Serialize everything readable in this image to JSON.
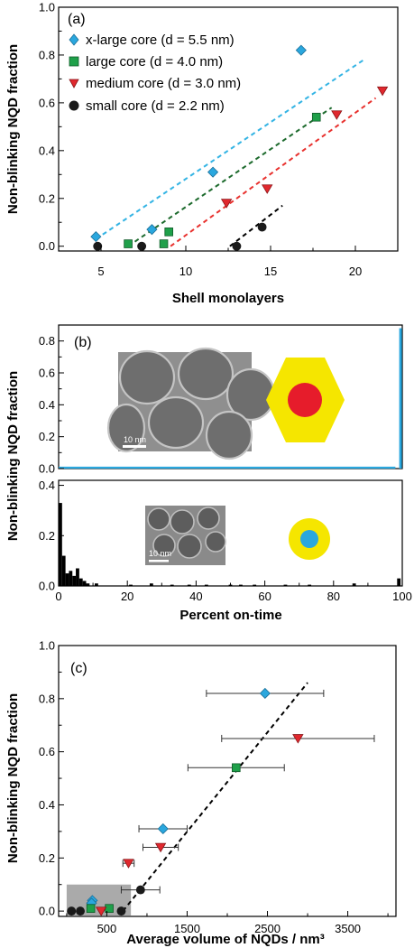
{
  "chart_data": [
    {
      "type": "scatter",
      "panel_label": "(a)",
      "xlabel": "Shell monolayers",
      "ylabel": "Non-blinking NQD fraction",
      "xlim": [
        2.5,
        22.5
      ],
      "ylim": [
        -0.02,
        1.0
      ],
      "xticks": [
        5,
        10,
        15,
        20
      ],
      "yticks": [
        0.0,
        0.2,
        0.4,
        0.6,
        0.8,
        1.0
      ],
      "legend_position": "top-left",
      "series": [
        {
          "name": "x-large core (d = 5.5 nm)",
          "marker": "diamond",
          "color": "#2aa7de",
          "line_color": "#34b4e4",
          "x": [
            4.7,
            8.0,
            11.6,
            16.8
          ],
          "y": [
            0.04,
            0.07,
            0.31,
            0.82
          ],
          "fit": {
            "x": [
              4.7,
              20.5
            ],
            "y": [
              0.03,
              0.78
            ]
          }
        },
        {
          "name": "large core (d = 4.0 nm)",
          "marker": "square",
          "color": "#1fa04a",
          "line_color": "#1e6b2e",
          "x": [
            6.6,
            8.7,
            9.0,
            17.7
          ],
          "y": [
            0.01,
            0.01,
            0.06,
            0.54
          ],
          "fit": {
            "x": [
              6.6,
              18.6
            ],
            "y": [
              0.0,
              0.58
            ]
          }
        },
        {
          "name": "medium core (d = 3.0 nm)",
          "marker": "triangle-down",
          "color": "#e0282e",
          "line_color": "#e8312e",
          "x": [
            12.4,
            14.8,
            18.9,
            21.6
          ],
          "y": [
            0.18,
            0.24,
            0.55,
            0.65
          ],
          "fit": {
            "x": [
              9.1,
              21.2
            ],
            "y": [
              0.0,
              0.62
            ]
          }
        },
        {
          "name": "small core (d = 2.2 nm)",
          "marker": "circle",
          "color": "#1a1a1a",
          "line_color": "#000000",
          "x": [
            4.8,
            7.4,
            13.0,
            14.5
          ],
          "y": [
            0.0,
            0.0,
            0.0,
            0.08
          ],
          "fit": {
            "x": [
              12.6,
              15.7
            ],
            "y": [
              0.0,
              0.17
            ]
          }
        }
      ]
    },
    {
      "type": "bar",
      "panel_label": "(b)",
      "ylabel": "Non-blinking NQD fraction",
      "xlim": [
        0,
        100
      ],
      "ylim": [
        0,
        0.9
      ],
      "yticks": [
        0.0,
        0.2,
        0.4,
        0.6,
        0.8
      ],
      "color": "#2aa7de",
      "bins": [
        {
          "x": 0,
          "y": 0.0
        },
        {
          "x": 20,
          "y": 0.0
        },
        {
          "x": 40,
          "y": 0.0
        },
        {
          "x": 60,
          "y": 0.0
        },
        {
          "x": 80,
          "y": 0.0
        },
        {
          "x": 96,
          "y": 0.005
        },
        {
          "x": 99.5,
          "y": 0.88
        }
      ],
      "inset_scale_bar": "10 nm"
    },
    {
      "type": "bar",
      "xlabel": "Percent on-time",
      "ylabel": "Non-blinking NQD fraction",
      "xlim": [
        0,
        100
      ],
      "ylim": [
        0,
        0.42
      ],
      "xticks": [
        0,
        20,
        40,
        60,
        80,
        100
      ],
      "yticks": [
        0.0,
        0.2,
        0.4
      ],
      "color": "#000000",
      "bins": [
        {
          "x": 0.5,
          "y": 0.33
        },
        {
          "x": 1.5,
          "y": 0.12
        },
        {
          "x": 2.5,
          "y": 0.05
        },
        {
          "x": 3.5,
          "y": 0.06
        },
        {
          "x": 4.5,
          "y": 0.04
        },
        {
          "x": 5.5,
          "y": 0.07
        },
        {
          "x": 6.5,
          "y": 0.03
        },
        {
          "x": 7.5,
          "y": 0.02
        },
        {
          "x": 8.5,
          "y": 0.01
        },
        {
          "x": 11,
          "y": 0.01
        },
        {
          "x": 21,
          "y": 0.005
        },
        {
          "x": 27,
          "y": 0.01
        },
        {
          "x": 33,
          "y": 0.005
        },
        {
          "x": 38,
          "y": 0.005
        },
        {
          "x": 43,
          "y": 0.005
        },
        {
          "x": 50,
          "y": 0.005
        },
        {
          "x": 53,
          "y": 0.005
        },
        {
          "x": 57,
          "y": 0.005
        },
        {
          "x": 66,
          "y": 0.005
        },
        {
          "x": 73,
          "y": 0.005
        },
        {
          "x": 86,
          "y": 0.01
        },
        {
          "x": 99,
          "y": 0.03
        }
      ],
      "inset_scale_bar": "10 nm"
    },
    {
      "type": "scatter",
      "panel_label": "(c)",
      "xlabel": "Average volume of NQDs / nm³",
      "ylabel": "Non-blinking NQD fraction",
      "xlim": [
        -100,
        4100
      ],
      "ylim": [
        -0.02,
        1.0
      ],
      "xticks": [
        500,
        1500,
        2500,
        3500
      ],
      "yticks": [
        0.0,
        0.2,
        0.4,
        0.6,
        0.8,
        1.0
      ],
      "fit": {
        "x": [
          700,
          3000
        ],
        "y": [
          0.0,
          0.86
        ]
      },
      "highlight_box": {
        "x": [
          0,
          800
        ],
        "y": [
          -0.02,
          0.1
        ],
        "color": "#aaaaaa"
      },
      "series": [
        {
          "name": "x-large core",
          "marker": "diamond",
          "color": "#2aa7de",
          "points": [
            [
              2470,
              0.82,
              730
            ],
            [
              1200,
              0.31,
              300
            ],
            [
              320,
              0.04,
              0
            ],
            [
              310,
              0.03,
              0
            ]
          ]
        },
        {
          "name": "large core",
          "marker": "square",
          "color": "#1fa04a",
          "points": [
            [
              2110,
              0.54,
              600
            ],
            [
              300,
              0.01,
              0
            ],
            [
              530,
              0.01,
              0
            ]
          ]
        },
        {
          "name": "medium core",
          "marker": "triangle-down",
          "color": "#e0282e",
          "points": [
            [
              2880,
              0.65,
              950
            ],
            [
              1170,
              0.24,
              220
            ],
            [
              770,
              0.18,
              70
            ],
            [
              430,
              0.0,
              0
            ]
          ]
        },
        {
          "name": "small core",
          "marker": "circle",
          "color": "#1a1a1a",
          "points": [
            [
              920,
              0.08,
              240
            ],
            [
              170,
              0.0,
              0
            ],
            [
              680,
              0.0,
              0
            ],
            [
              60,
              0.0,
              0
            ]
          ]
        }
      ]
    }
  ]
}
